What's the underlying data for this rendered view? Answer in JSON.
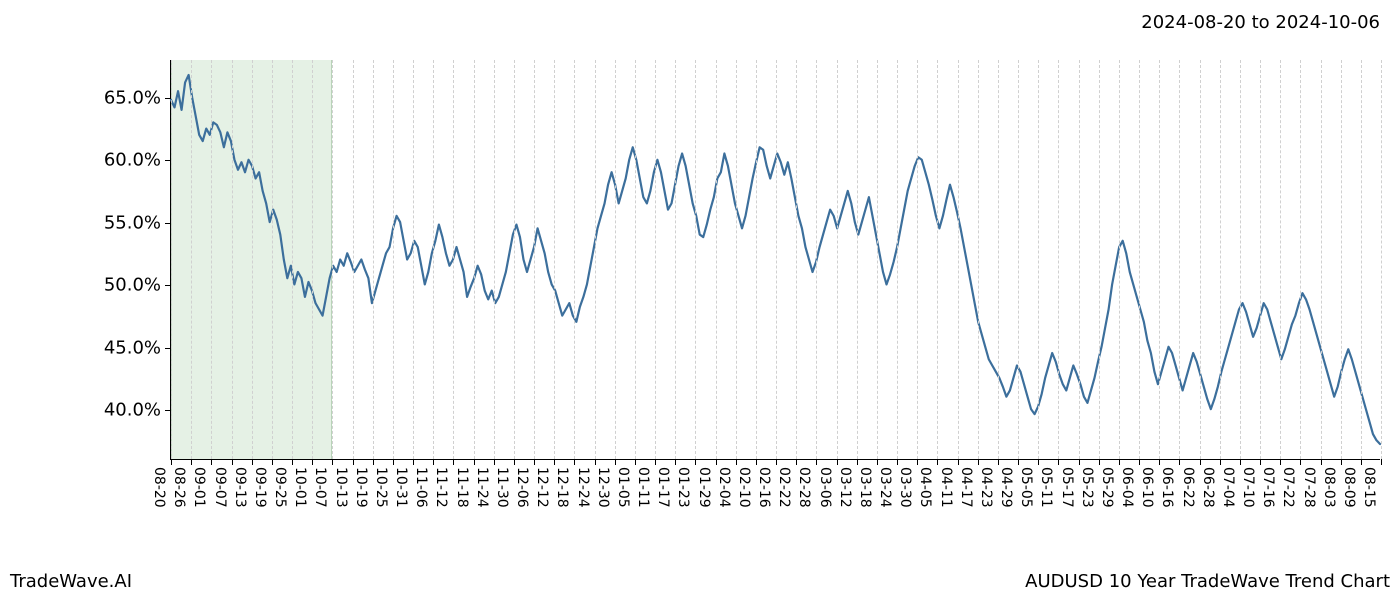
{
  "header": {
    "date_range": "2024-08-20 to 2024-10-06"
  },
  "footer": {
    "left": "TradeWave.AI",
    "right": "AUDUSD 10 Year TradeWave Trend Chart"
  },
  "chart": {
    "type": "line",
    "background_color": "#ffffff",
    "grid_color": "#d0d0d0",
    "axis_color": "#000000",
    "tick_font_size": 14,
    "y_label_font_size": 18,
    "y_axis": {
      "min": 36,
      "max": 68,
      "ticks": [
        40.0,
        45.0,
        50.0,
        55.0,
        60.0,
        65.0
      ],
      "tick_format_suffix": "%"
    },
    "x_axis": {
      "labels": [
        "08-20",
        "08-26",
        "09-01",
        "09-07",
        "09-13",
        "09-19",
        "09-25",
        "10-01",
        "10-07",
        "10-13",
        "10-19",
        "10-25",
        "10-31",
        "11-06",
        "11-12",
        "11-18",
        "11-24",
        "11-30",
        "12-06",
        "12-12",
        "12-18",
        "12-24",
        "12-30",
        "01-05",
        "01-11",
        "01-17",
        "01-23",
        "01-29",
        "02-04",
        "02-10",
        "02-16",
        "02-22",
        "02-28",
        "03-06",
        "03-12",
        "03-18",
        "03-24",
        "03-30",
        "04-05",
        "04-11",
        "04-17",
        "04-23",
        "04-29",
        "05-05",
        "05-11",
        "05-17",
        "05-23",
        "05-29",
        "06-04",
        "06-10",
        "06-16",
        "06-22",
        "06-28",
        "07-04",
        "07-10",
        "07-16",
        "07-22",
        "07-28",
        "08-03",
        "08-09",
        "08-15"
      ]
    },
    "highlight": {
      "start_index": 0,
      "end_index": 8,
      "fill": "rgba(150,200,150,0.25)"
    },
    "series": {
      "color": "#3c6f9c",
      "line_width": 2.2,
      "points": [
        64.8,
        64.2,
        65.5,
        64.0,
        66.2,
        66.8,
        65.0,
        63.5,
        62.0,
        61.5,
        62.5,
        62.0,
        63.0,
        62.8,
        62.2,
        61.0,
        62.2,
        61.5,
        60.0,
        59.2,
        59.8,
        59.0,
        60.0,
        59.5,
        58.5,
        59.0,
        57.5,
        56.5,
        55.0,
        56.0,
        55.2,
        54.0,
        52.0,
        50.5,
        51.5,
        50.0,
        51.0,
        50.5,
        49.0,
        50.2,
        49.5,
        48.5,
        48.0,
        47.5,
        49.0,
        50.5,
        51.5,
        51.0,
        52.0,
        51.5,
        52.5,
        51.8,
        51.0,
        51.5,
        52.0,
        51.2,
        50.5,
        48.5,
        49.5,
        50.5,
        51.5,
        52.5,
        53.0,
        54.5,
        55.5,
        55.0,
        53.5,
        52.0,
        52.5,
        53.5,
        53.0,
        51.5,
        50.0,
        51.0,
        52.5,
        53.5,
        54.8,
        53.8,
        52.5,
        51.5,
        52.0,
        53.0,
        52.0,
        51.0,
        49.0,
        49.8,
        50.5,
        51.5,
        50.8,
        49.5,
        48.8,
        49.5,
        48.5,
        49.0,
        50.0,
        51.0,
        52.5,
        54.0,
        54.8,
        53.8,
        52.0,
        51.0,
        52.0,
        53.0,
        54.5,
        53.5,
        52.5,
        51.0,
        50.0,
        49.5,
        48.5,
        47.5,
        48.0,
        48.5,
        47.5,
        47.0,
        48.2,
        49.0,
        50.0,
        51.5,
        53.0,
        54.5,
        55.5,
        56.5,
        58.0,
        59.0,
        58.0,
        56.5,
        57.5,
        58.5,
        60.0,
        61.0,
        60.0,
        58.5,
        57.0,
        56.5,
        57.5,
        59.0,
        60.0,
        59.0,
        57.5,
        56.0,
        56.5,
        58.0,
        59.5,
        60.5,
        59.5,
        58.0,
        56.5,
        55.5,
        54.0,
        53.8,
        54.8,
        56.0,
        57.0,
        58.5,
        59.0,
        60.5,
        59.5,
        58.0,
        56.5,
        55.5,
        54.5,
        55.5,
        57.0,
        58.5,
        59.8,
        61.0,
        60.8,
        59.5,
        58.5,
        59.5,
        60.5,
        59.8,
        58.8,
        59.8,
        58.5,
        57.0,
        55.5,
        54.5,
        53.0,
        52.0,
        51.0,
        51.8,
        53.0,
        54.0,
        55.0,
        56.0,
        55.5,
        54.5,
        55.5,
        56.5,
        57.5,
        56.5,
        55.0,
        54.0,
        55.0,
        56.0,
        57.0,
        55.5,
        54.0,
        52.5,
        51.0,
        50.0,
        50.8,
        51.8,
        53.0,
        54.5,
        56.0,
        57.5,
        58.5,
        59.5,
        60.2,
        60.0,
        59.0,
        58.0,
        56.8,
        55.5,
        54.5,
        55.5,
        56.8,
        58.0,
        57.0,
        55.8,
        54.5,
        53.0,
        51.5,
        50.0,
        48.5,
        47.0,
        46.0,
        45.0,
        44.0,
        43.5,
        43.0,
        42.5,
        41.8,
        41.0,
        41.5,
        42.5,
        43.5,
        43.0,
        42.0,
        41.0,
        40.0,
        39.6,
        40.2,
        41.2,
        42.5,
        43.5,
        44.5,
        43.8,
        42.8,
        42.0,
        41.5,
        42.5,
        43.5,
        42.8,
        42.0,
        41.0,
        40.5,
        41.5,
        42.5,
        43.8,
        45.0,
        46.5,
        48.0,
        50.0,
        51.5,
        53.0,
        53.5,
        52.5,
        51.0,
        50.0,
        49.0,
        48.0,
        47.0,
        45.5,
        44.5,
        43.0,
        42.0,
        43.0,
        44.0,
        45.0,
        44.5,
        43.5,
        42.5,
        41.5,
        42.5,
        43.5,
        44.5,
        43.8,
        42.8,
        41.8,
        40.8,
        40.0,
        40.8,
        41.8,
        43.0,
        44.0,
        45.0,
        46.0,
        47.0,
        48.0,
        48.5,
        47.8,
        46.8,
        45.8,
        46.5,
        47.5,
        48.5,
        48.0,
        47.0,
        46.0,
        45.0,
        44.0,
        44.8,
        45.8,
        46.8,
        47.5,
        48.5,
        49.3,
        48.8,
        48.0,
        47.0,
        46.0,
        45.0,
        44.0,
        43.0,
        42.0,
        41.0,
        41.8,
        43.0,
        44.0,
        44.8,
        44.0,
        43.0,
        42.0,
        41.0,
        40.0,
        39.0,
        38.0,
        37.5,
        37.2
      ]
    }
  }
}
